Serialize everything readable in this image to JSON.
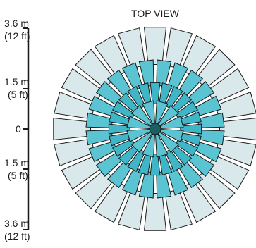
{
  "title": "TOP VIEW",
  "scale_labels": [
    {
      "line1": "3.6 m",
      "line2": "(12 ft)"
    },
    {
      "line1": "1.5 m",
      "line2": "(5 ft)"
    },
    {
      "line1": "0",
      "line2": ""
    },
    {
      "line1": "1.5 m",
      "line2": "(5 ft)"
    },
    {
      "line1": "3.6 m",
      "line2": "(12 ft)"
    }
  ],
  "zones": {
    "sector_count": 24,
    "rings": [
      "inner",
      "middle",
      "outer"
    ]
  },
  "colors": {
    "outer_zone": "#d9e8ea",
    "middle_zone": "#5bc4d2",
    "inner_zone": "#3fb6c8",
    "outline": "#1a1a1a",
    "center": "#1b5f63"
  }
}
